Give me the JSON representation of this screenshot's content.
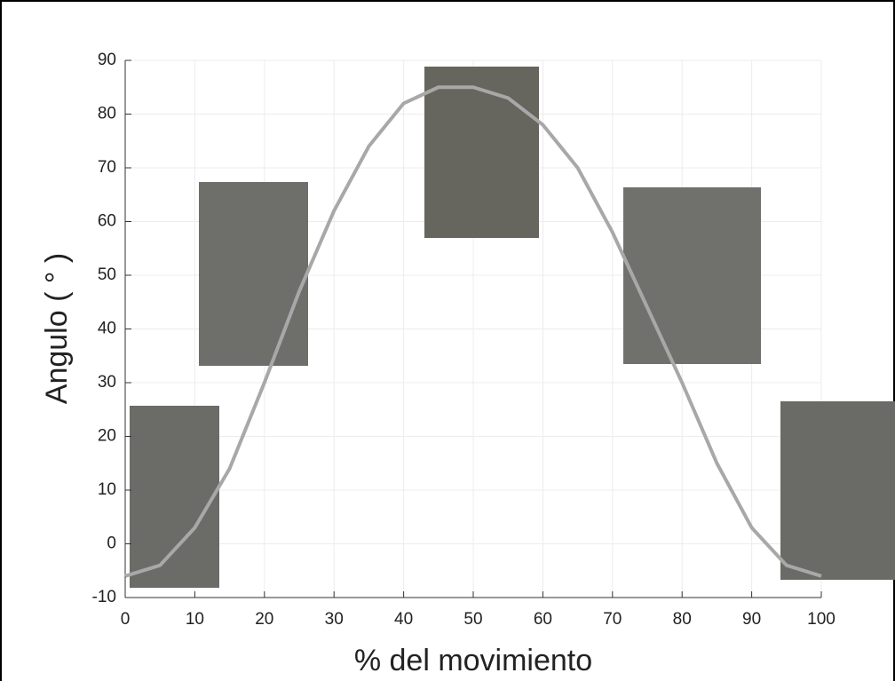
{
  "chart_data": {
    "type": "line",
    "xlabel": "% del movimiento",
    "ylabel": "Angulo ( ° )",
    "x": [
      0,
      5,
      10,
      15,
      20,
      25,
      30,
      35,
      40,
      45,
      50,
      55,
      60,
      65,
      70,
      75,
      80,
      85,
      90,
      95,
      100
    ],
    "series": [
      {
        "color": "#a8a8a8",
        "values": [
          -6,
          -4,
          3,
          14,
          30,
          47,
          62,
          74,
          82,
          85,
          85,
          83,
          78,
          70,
          58,
          44,
          30,
          15,
          3,
          -4,
          -6
        ]
      }
    ],
    "xlim": [
      0,
      100
    ],
    "xticks": [
      0,
      10,
      20,
      30,
      40,
      50,
      60,
      70,
      80,
      90,
      100
    ],
    "ylim": [
      -10,
      90
    ],
    "yticks": [
      -10,
      0,
      10,
      20,
      30,
      40,
      50,
      60,
      70,
      80,
      90
    ],
    "grid": true
  }
}
